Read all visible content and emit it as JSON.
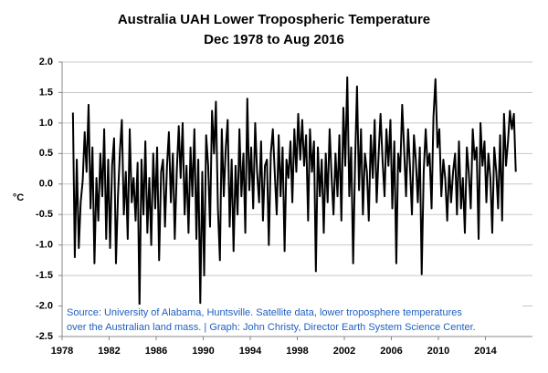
{
  "chart_data": {
    "type": "line",
    "title": "Australia UAH Lower Tropospheric Temperature",
    "subtitle": "Dec 1978 to Aug 2016",
    "y_label": "°C",
    "annotations": [
      "Source: University of Alabama, Huntsville. Satellite data, lower troposphere temperatures",
      "over the Australian land mass. | Graph: John Christy, Director Earth System Science Center."
    ],
    "xlim": [
      1978,
      2018
    ],
    "xticks": [
      1978,
      1982,
      1986,
      1990,
      1994,
      1998,
      2002,
      2006,
      2010,
      2014
    ],
    "ylim": [
      -2.5,
      2.0
    ],
    "yticks": [
      {
        "value": -2.5,
        "label": "-2.5"
      },
      {
        "value": -2,
        "label": "-2.0"
      },
      {
        "value": -1.5,
        "label": "-1.5"
      },
      {
        "value": -1,
        "label": "-1.0"
      },
      {
        "value": -0.5,
        "label": "-0.5"
      },
      {
        "value": 0,
        "label": "0.0"
      },
      {
        "value": 0.5,
        "label": "0.5"
      },
      {
        "value": 1,
        "label": "1.0"
      },
      {
        "value": 1.5,
        "label": "1.5"
      },
      {
        "value": 2,
        "label": "2.0"
      }
    ],
    "grid": true,
    "color": "#000000",
    "x": [
      1978.92,
      1979.08,
      1979.25,
      1979.42,
      1979.58,
      1979.75,
      1979.92,
      1980.08,
      1980.25,
      1980.42,
      1980.58,
      1980.75,
      1980.92,
      1981.08,
      1981.25,
      1981.42,
      1981.58,
      1981.75,
      1981.92,
      1982.08,
      1982.25,
      1982.42,
      1982.58,
      1982.75,
      1982.92,
      1983.08,
      1983.25,
      1983.42,
      1983.58,
      1983.75,
      1983.92,
      1984.08,
      1984.25,
      1984.42,
      1984.58,
      1984.75,
      1984.92,
      1985.08,
      1985.25,
      1985.42,
      1985.58,
      1985.75,
      1985.92,
      1986.08,
      1986.25,
      1986.42,
      1986.58,
      1986.75,
      1986.92,
      1987.08,
      1987.25,
      1987.42,
      1987.58,
      1987.75,
      1987.92,
      1988.08,
      1988.25,
      1988.42,
      1988.58,
      1988.75,
      1988.92,
      1989.08,
      1989.25,
      1989.42,
      1989.58,
      1989.75,
      1989.92,
      1990.08,
      1990.25,
      1990.42,
      1990.58,
      1990.75,
      1990.92,
      1991.08,
      1991.25,
      1991.42,
      1991.58,
      1991.75,
      1991.92,
      1992.08,
      1992.25,
      1992.42,
      1992.58,
      1992.75,
      1992.92,
      1993.08,
      1993.25,
      1993.42,
      1993.58,
      1993.75,
      1993.92,
      1994.08,
      1994.25,
      1994.42,
      1994.58,
      1994.75,
      1994.92,
      1995.08,
      1995.25,
      1995.42,
      1995.58,
      1995.75,
      1995.92,
      1996.08,
      1996.25,
      1996.42,
      1996.58,
      1996.75,
      1996.92,
      1997.08,
      1997.25,
      1997.42,
      1997.58,
      1997.75,
      1997.92,
      1998.08,
      1998.25,
      1998.42,
      1998.58,
      1998.75,
      1998.92,
      1999.08,
      1999.25,
      1999.42,
      1999.58,
      1999.75,
      1999.92,
      2000.08,
      2000.25,
      2000.42,
      2000.58,
      2000.75,
      2000.92,
      2001.08,
      2001.25,
      2001.42,
      2001.58,
      2001.75,
      2001.92,
      2002.08,
      2002.25,
      2002.42,
      2002.58,
      2002.75,
      2002.92,
      2003.08,
      2003.25,
      2003.42,
      2003.58,
      2003.75,
      2003.92,
      2004.08,
      2004.25,
      2004.42,
      2004.58,
      2004.75,
      2004.92,
      2005.08,
      2005.25,
      2005.42,
      2005.58,
      2005.75,
      2005.92,
      2006.08,
      2006.25,
      2006.42,
      2006.58,
      2006.75,
      2006.92,
      2007.08,
      2007.25,
      2007.42,
      2007.58,
      2007.75,
      2007.92,
      2008.08,
      2008.25,
      2008.42,
      2008.58,
      2008.75,
      2008.92,
      2009.08,
      2009.25,
      2009.42,
      2009.58,
      2009.75,
      2009.92,
      2010.08,
      2010.25,
      2010.42,
      2010.58,
      2010.75,
      2010.92,
      2011.08,
      2011.25,
      2011.42,
      2011.58,
      2011.75,
      2011.92,
      2012.08,
      2012.25,
      2012.42,
      2012.58,
      2012.75,
      2012.92,
      2013.08,
      2013.25,
      2013.42,
      2013.58,
      2013.75,
      2013.92,
      2014.08,
      2014.25,
      2014.42,
      2014.58,
      2014.75,
      2014.92,
      2015.08,
      2015.25,
      2015.42,
      2015.58,
      2015.75,
      2015.92,
      2016.08,
      2016.25,
      2016.42,
      2016.58
    ],
    "values": [
      1.17,
      -1.2,
      0.4,
      -1.05,
      -0.3,
      0.05,
      0.85,
      0.2,
      1.3,
      -0.4,
      0.6,
      -1.3,
      0.1,
      -0.6,
      0.5,
      -0.2,
      0.9,
      -0.9,
      0.4,
      -1.05,
      0.3,
      0.75,
      -1.3,
      -0.2,
      0.55,
      1.05,
      -0.5,
      0.2,
      -0.9,
      0.9,
      -0.3,
      0.1,
      -0.6,
      0.35,
      -2.05,
      0.4,
      -0.5,
      0.7,
      -0.8,
      0.1,
      -1.0,
      0.5,
      -0.4,
      0.6,
      -1.25,
      0.2,
      0.4,
      -0.7,
      0.3,
      0.85,
      -0.3,
      0.5,
      -0.9,
      0.2,
      0.95,
      0.1,
      1.0,
      -0.5,
      0.3,
      -0.8,
      0.6,
      -0.2,
      0.9,
      -0.9,
      0.4,
      -1.95,
      0.2,
      -1.5,
      0.8,
      0.3,
      -0.7,
      1.2,
      0.5,
      1.35,
      -0.4,
      -1.25,
      0.9,
      -0.2,
      0.6,
      1.05,
      -0.7,
      0.4,
      -1.1,
      0.3,
      -0.5,
      0.9,
      -0.2,
      0.5,
      -0.8,
      1.4,
      -0.1,
      0.6,
      -0.4,
      1.0,
      0.2,
      -0.3,
      0.7,
      -0.6,
      0.3,
      0.4,
      -1.0,
      0.5,
      0.9,
      0.2,
      -0.5,
      0.8,
      -0.2,
      0.6,
      -1.1,
      0.4,
      0.1,
      0.7,
      -0.3,
      0.9,
      0.2,
      1.15,
      0.4,
      1.05,
      0.3,
      0.8,
      -0.6,
      0.9,
      0.2,
      0.7,
      -1.43,
      0.6,
      -0.2,
      0.4,
      -0.8,
      0.5,
      -0.3,
      0.9,
      0.1,
      -0.5,
      0.5,
      -0.2,
      0.8,
      -0.6,
      1.25,
      0.3,
      1.75,
      -0.2,
      0.6,
      -1.3,
      0.4,
      1.6,
      -0.1,
      0.9,
      -0.5,
      0.5,
      0.2,
      -0.6,
      0.8,
      0.1,
      1.05,
      -0.3,
      0.5,
      1.15,
      0.4,
      -0.2,
      0.9,
      0.3,
      1.05,
      -0.4,
      0.7,
      -1.3,
      0.5,
      0.2,
      1.3,
      0.6,
      -0.2,
      0.9,
      0.3,
      -0.5,
      0.8,
      0.4,
      -0.3,
      0.6,
      -1.48,
      0.2,
      0.9,
      0.3,
      0.5,
      -0.4,
      1.1,
      1.72,
      0.6,
      0.9,
      -0.2,
      0.4,
      0.1,
      -0.6,
      0.3,
      -0.3,
      0.2,
      0.5,
      -0.5,
      0.7,
      -0.4,
      0.1,
      -0.8,
      0.6,
      0.2,
      -0.4,
      0.9,
      0.4,
      0.6,
      -0.9,
      1.0,
      0.3,
      0.7,
      -0.3,
      0.5,
      0.1,
      -0.8,
      0.6,
      0.2,
      -0.4,
      0.8,
      -0.6,
      1.15,
      0.3,
      0.7,
      1.2,
      0.9,
      1.15,
      0.2
    ]
  }
}
